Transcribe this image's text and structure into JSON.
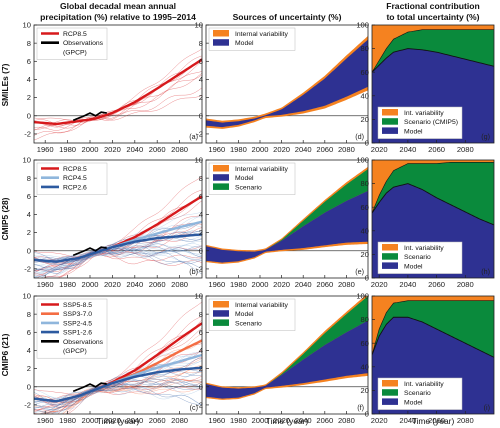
{
  "column_titles": [
    [
      "Global decadal mean annual",
      "precipitation (%) relative to 1995–2014"
    ],
    [
      "Sources of uncertainty (%)"
    ],
    [
      "Fractional contribution",
      "to total uncertainty (%)"
    ]
  ],
  "row_labels": [
    "SMILEs (7)",
    "CMIP5 (28)",
    "CMIP6 (21)"
  ],
  "x_axis_label": "Time (year)",
  "colors": {
    "internal_variability": "#f58220",
    "model": "#2e3192",
    "scenario": "#0a8a3c",
    "observations": "#000000",
    "rcp85": "#d7191c",
    "ssp370": "#f46d43",
    "ssp245": "#8fb6dc",
    "ssp126": "#2c5aa0"
  },
  "chart_data": [
    {
      "panel": "(a)",
      "type": "line",
      "xlim": [
        1950,
        2100
      ],
      "ylim": [
        -3,
        10
      ],
      "xticks": [
        "1960",
        "1980",
        "2000",
        "2020",
        "2040",
        "2060",
        "2080"
      ],
      "yticks": [
        "-2",
        "0",
        "2",
        "4",
        "6",
        "8",
        "10"
      ],
      "legend": [
        "RCP8.5",
        "Observations (GPCP)"
      ],
      "series": [
        {
          "name": "RCP8.5",
          "x": [
            1950,
            1970,
            1990,
            2005,
            2020,
            2040,
            2060,
            2080,
            2100
          ],
          "y": [
            -0.7,
            -0.9,
            -0.6,
            -0.3,
            0.3,
            1.5,
            3.0,
            4.6,
            6.2
          ]
        },
        {
          "name": "Observations (GPCP)",
          "x": [
            1985,
            1995,
            2000,
            2005,
            2010,
            2015
          ],
          "y": [
            -0.5,
            0.0,
            0.3,
            0.0,
            0.4,
            0.3
          ]
        }
      ]
    },
    {
      "panel": "(b)",
      "type": "line",
      "xlim": [
        1950,
        2100
      ],
      "ylim": [
        -3,
        10
      ],
      "xticks": [
        "1960",
        "1980",
        "2000",
        "2020",
        "2040",
        "2060",
        "2080"
      ],
      "yticks": [
        "-2",
        "0",
        "2",
        "4",
        "6",
        "8",
        "10"
      ],
      "legend": [
        "RCP8.5",
        "RCP4.5",
        "RCP2.6"
      ],
      "series": [
        {
          "name": "RCP8.5",
          "x": [
            1950,
            1970,
            1990,
            2005,
            2020,
            2040,
            2060,
            2080,
            2100
          ],
          "y": [
            -1.0,
            -1.2,
            -0.8,
            -0.2,
            0.4,
            1.5,
            2.9,
            4.5,
            6.0
          ]
        },
        {
          "name": "RCP4.5",
          "x": [
            1950,
            1970,
            1990,
            2005,
            2020,
            2040,
            2060,
            2080,
            2100
          ],
          "y": [
            -1.0,
            -1.2,
            -0.8,
            -0.2,
            0.4,
            1.2,
            1.9,
            2.6,
            3.2
          ]
        },
        {
          "name": "RCP2.6",
          "x": [
            1950,
            1970,
            1990,
            2005,
            2020,
            2040,
            2060,
            2080,
            2100
          ],
          "y": [
            -1.0,
            -1.2,
            -0.8,
            -0.2,
            0.4,
            1.0,
            1.4,
            1.6,
            1.8
          ]
        },
        {
          "name": "Observations",
          "x": [
            1985,
            1995,
            2000,
            2005,
            2010,
            2015
          ],
          "y": [
            -0.5,
            0.0,
            0.3,
            0.0,
            0.4,
            0.3
          ]
        }
      ]
    },
    {
      "panel": "(c)",
      "type": "line",
      "xlim": [
        1950,
        2100
      ],
      "ylim": [
        -3,
        10
      ],
      "xticks": [
        "1960",
        "1980",
        "2000",
        "2020",
        "2040",
        "2060",
        "2080"
      ],
      "yticks": [
        "-2",
        "0",
        "2",
        "4",
        "6",
        "8",
        "10"
      ],
      "legend": [
        "SSP5-8.5",
        "SSP3-7.0",
        "SSP2-4.5",
        "SSP1-2.6",
        "Observations (GPCP)"
      ],
      "series": [
        {
          "name": "SSP5-8.5",
          "x": [
            1950,
            1970,
            1990,
            2005,
            2020,
            2040,
            2060,
            2080,
            2100
          ],
          "y": [
            -1.3,
            -1.6,
            -1.0,
            -0.3,
            0.5,
            1.8,
            3.5,
            5.3,
            7.0
          ]
        },
        {
          "name": "SSP3-7.0",
          "x": [
            1950,
            1970,
            1990,
            2005,
            2020,
            2040,
            2060,
            2080,
            2100
          ],
          "y": [
            -1.3,
            -1.6,
            -1.0,
            -0.3,
            0.4,
            1.4,
            2.6,
            3.9,
            5.1
          ]
        },
        {
          "name": "SSP2-4.5",
          "x": [
            1950,
            1970,
            1990,
            2005,
            2020,
            2040,
            2060,
            2080,
            2100
          ],
          "y": [
            -1.3,
            -1.6,
            -1.0,
            -0.3,
            0.4,
            1.3,
            2.1,
            2.8,
            3.5
          ]
        },
        {
          "name": "SSP1-2.6",
          "x": [
            1950,
            1970,
            1990,
            2005,
            2020,
            2040,
            2060,
            2080,
            2100
          ],
          "y": [
            -1.3,
            -1.6,
            -1.0,
            -0.3,
            0.4,
            1.1,
            1.6,
            1.9,
            2.1
          ]
        },
        {
          "name": "Observations (GPCP)",
          "x": [
            1985,
            1995,
            2000,
            2005,
            2010,
            2015
          ],
          "y": [
            -0.5,
            0.0,
            0.3,
            0.0,
            0.4,
            0.3
          ]
        }
      ]
    },
    {
      "panel": "(d)",
      "type": "area",
      "xlim": [
        1950,
        2100
      ],
      "ylim": [
        -3,
        10
      ],
      "xticks": [
        "1960",
        "1980",
        "2000",
        "2020",
        "2040",
        "2060",
        "2080"
      ],
      "yticks": [
        "-2",
        "0",
        "2",
        "4",
        "6",
        "8",
        "10"
      ],
      "legend": [
        "Internal variability",
        "Model"
      ],
      "x": [
        1950,
        1965,
        1980,
        1995,
        2005,
        2020,
        2040,
        2060,
        2080,
        2100
      ],
      "center": [
        -0.8,
        -1.0,
        -0.8,
        -0.4,
        0.0,
        0.4,
        1.4,
        2.6,
        4.2,
        5.8
      ],
      "half_model": [
        0.3,
        0.25,
        0.2,
        0.1,
        0.05,
        0.3,
        0.9,
        1.5,
        2.1,
        2.6
      ],
      "half_internal": [
        0.2,
        0.2,
        0.2,
        0.2,
        0.2,
        0.2,
        0.25,
        0.3,
        0.35,
        0.4
      ]
    },
    {
      "panel": "(e)",
      "type": "area",
      "xlim": [
        1950,
        2100
      ],
      "ylim": [
        -3,
        10
      ],
      "xticks": [
        "1960",
        "1980",
        "2000",
        "2020",
        "2040",
        "2060",
        "2080"
      ],
      "yticks": [
        "-2",
        "0",
        "2",
        "4",
        "6",
        "8",
        "10"
      ],
      "legend": [
        "Internal variability",
        "Model",
        "Scenario"
      ],
      "x": [
        1950,
        1965,
        1980,
        1995,
        2005,
        2020,
        2040,
        2060,
        2080,
        2100
      ],
      "center": [
        -0.3,
        -0.6,
        -0.6,
        -0.4,
        0.0,
        0.6,
        1.5,
        2.4,
        3.2,
        3.8
      ],
      "half_model": [
        0.8,
        0.7,
        0.55,
        0.3,
        0.1,
        0.5,
        1.2,
        1.8,
        2.3,
        2.8
      ],
      "half_scenario": [
        0,
        0,
        0,
        0,
        0,
        0.1,
        0.6,
        1.2,
        1.8,
        2.4
      ],
      "half_internal": [
        0.15,
        0.15,
        0.15,
        0.15,
        0.15,
        0.15,
        0.2,
        0.2,
        0.25,
        0.25
      ]
    },
    {
      "panel": "(f)",
      "type": "area",
      "xlim": [
        1950,
        2100
      ],
      "ylim": [
        -3,
        10
      ],
      "xticks": [
        "1960",
        "1980",
        "2000",
        "2020",
        "2040",
        "2060",
        "2080"
      ],
      "yticks": [
        "-2",
        "0",
        "2",
        "4",
        "6",
        "8",
        "10"
      ],
      "legend": [
        "Internal variability",
        "Model",
        "Scenario"
      ],
      "x": [
        1950,
        1965,
        1980,
        1995,
        2005,
        2020,
        2040,
        2060,
        2080,
        2100
      ],
      "center": [
        -0.4,
        -0.7,
        -0.7,
        -0.4,
        0.0,
        0.7,
        1.7,
        2.7,
        3.6,
        4.4
      ],
      "half_model": [
        0.7,
        0.6,
        0.5,
        0.3,
        0.1,
        0.6,
        1.3,
        1.9,
        2.4,
        2.9
      ],
      "half_scenario": [
        0,
        0,
        0,
        0,
        0,
        0.1,
        0.6,
        1.3,
        2.0,
        2.7
      ],
      "half_internal": [
        0.15,
        0.15,
        0.15,
        0.15,
        0.15,
        0.2,
        0.2,
        0.25,
        0.25,
        0.3
      ]
    },
    {
      "panel": "(g)",
      "type": "area",
      "xlim": [
        2015,
        2100
      ],
      "ylim": [
        0,
        100
      ],
      "xticks": [
        "2020",
        "2040",
        "2060",
        "2080"
      ],
      "yticks": [
        "0",
        "20",
        "40",
        "60",
        "80",
        "100"
      ],
      "legend": [
        "Int. variability",
        "Scenario (CMIP5)",
        "Model"
      ],
      "x": [
        2015,
        2020,
        2025,
        2030,
        2040,
        2050,
        2060,
        2070,
        2080,
        2090,
        2100
      ],
      "model": [
        60,
        66,
        72,
        77,
        80,
        79,
        77,
        74,
        71,
        68,
        65
      ],
      "scenario": [
        0,
        4,
        8,
        11,
        14,
        17,
        19,
        22,
        25,
        28,
        31
      ],
      "internal": [
        40,
        30,
        20,
        12,
        6,
        4,
        4,
        4,
        4,
        4,
        4
      ]
    },
    {
      "panel": "(h)",
      "type": "area",
      "xlim": [
        2015,
        2100
      ],
      "ylim": [
        0,
        100
      ],
      "xticks": [
        "2020",
        "2040",
        "2060",
        "2080"
      ],
      "yticks": [
        "0",
        "20",
        "40",
        "60",
        "80",
        "100"
      ],
      "legend": [
        "Int. variability",
        "Scenario",
        "Model"
      ],
      "x": [
        2015,
        2020,
        2025,
        2030,
        2040,
        2050,
        2060,
        2070,
        2080,
        2090,
        2100
      ],
      "model": [
        55,
        64,
        72,
        77,
        80,
        75,
        68,
        62,
        56,
        50,
        45
      ],
      "scenario": [
        0,
        6,
        10,
        14,
        17,
        22,
        29,
        36,
        42,
        48,
        53
      ],
      "internal": [
        45,
        30,
        18,
        9,
        3,
        3,
        3,
        2,
        2,
        2,
        2
      ]
    },
    {
      "panel": "(i)",
      "type": "area",
      "xlim": [
        2015,
        2100
      ],
      "ylim": [
        0,
        100
      ],
      "xticks": [
        "2020",
        "2040",
        "2060",
        "2080"
      ],
      "yticks": [
        "0",
        "20",
        "40",
        "60",
        "80",
        "100"
      ],
      "legend": [
        "Int. variability",
        "Scenario",
        "Model"
      ],
      "x": [
        2015,
        2020,
        2025,
        2030,
        2040,
        2050,
        2060,
        2070,
        2080,
        2090,
        2100
      ],
      "model": [
        50,
        66,
        76,
        82,
        82,
        78,
        72,
        66,
        60,
        54,
        48
      ],
      "scenario": [
        0,
        6,
        10,
        12,
        14,
        18,
        24,
        30,
        36,
        42,
        48
      ],
      "internal": [
        50,
        28,
        14,
        6,
        4,
        4,
        4,
        4,
        4,
        4,
        4
      ]
    }
  ]
}
